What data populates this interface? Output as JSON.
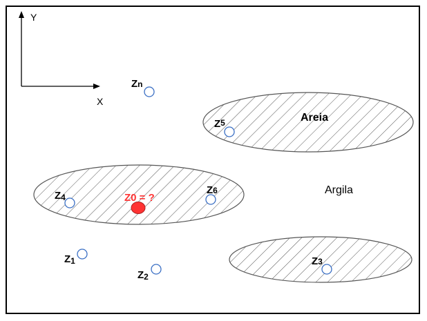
{
  "axes": {
    "y_label": "Y",
    "x_label": "X"
  },
  "regions": [
    {
      "id": "areia",
      "label": "Areia"
    },
    {
      "id": "left",
      "label": ""
    },
    {
      "id": "bottom-right",
      "label": ""
    }
  ],
  "background_label": "Argila",
  "unknown_point": {
    "label": "Z0 = ?",
    "color": "#ff3333"
  },
  "points": [
    {
      "id": "zn",
      "base": "Z",
      "sub": "n"
    },
    {
      "id": "z5",
      "base": "Z",
      "sub": "5"
    },
    {
      "id": "z4",
      "base": "Z",
      "sub": "4"
    },
    {
      "id": "z6",
      "base": "Z",
      "sub": "6"
    },
    {
      "id": "z1",
      "base": "Z",
      "sub": "1"
    },
    {
      "id": "z2",
      "base": "Z",
      "sub": "2"
    },
    {
      "id": "z3",
      "base": "Z",
      "sub": "3"
    }
  ],
  "colors": {
    "point_stroke": "#3a6fc4",
    "hatch": "#555555",
    "unknown_fill": "#ff3333"
  }
}
